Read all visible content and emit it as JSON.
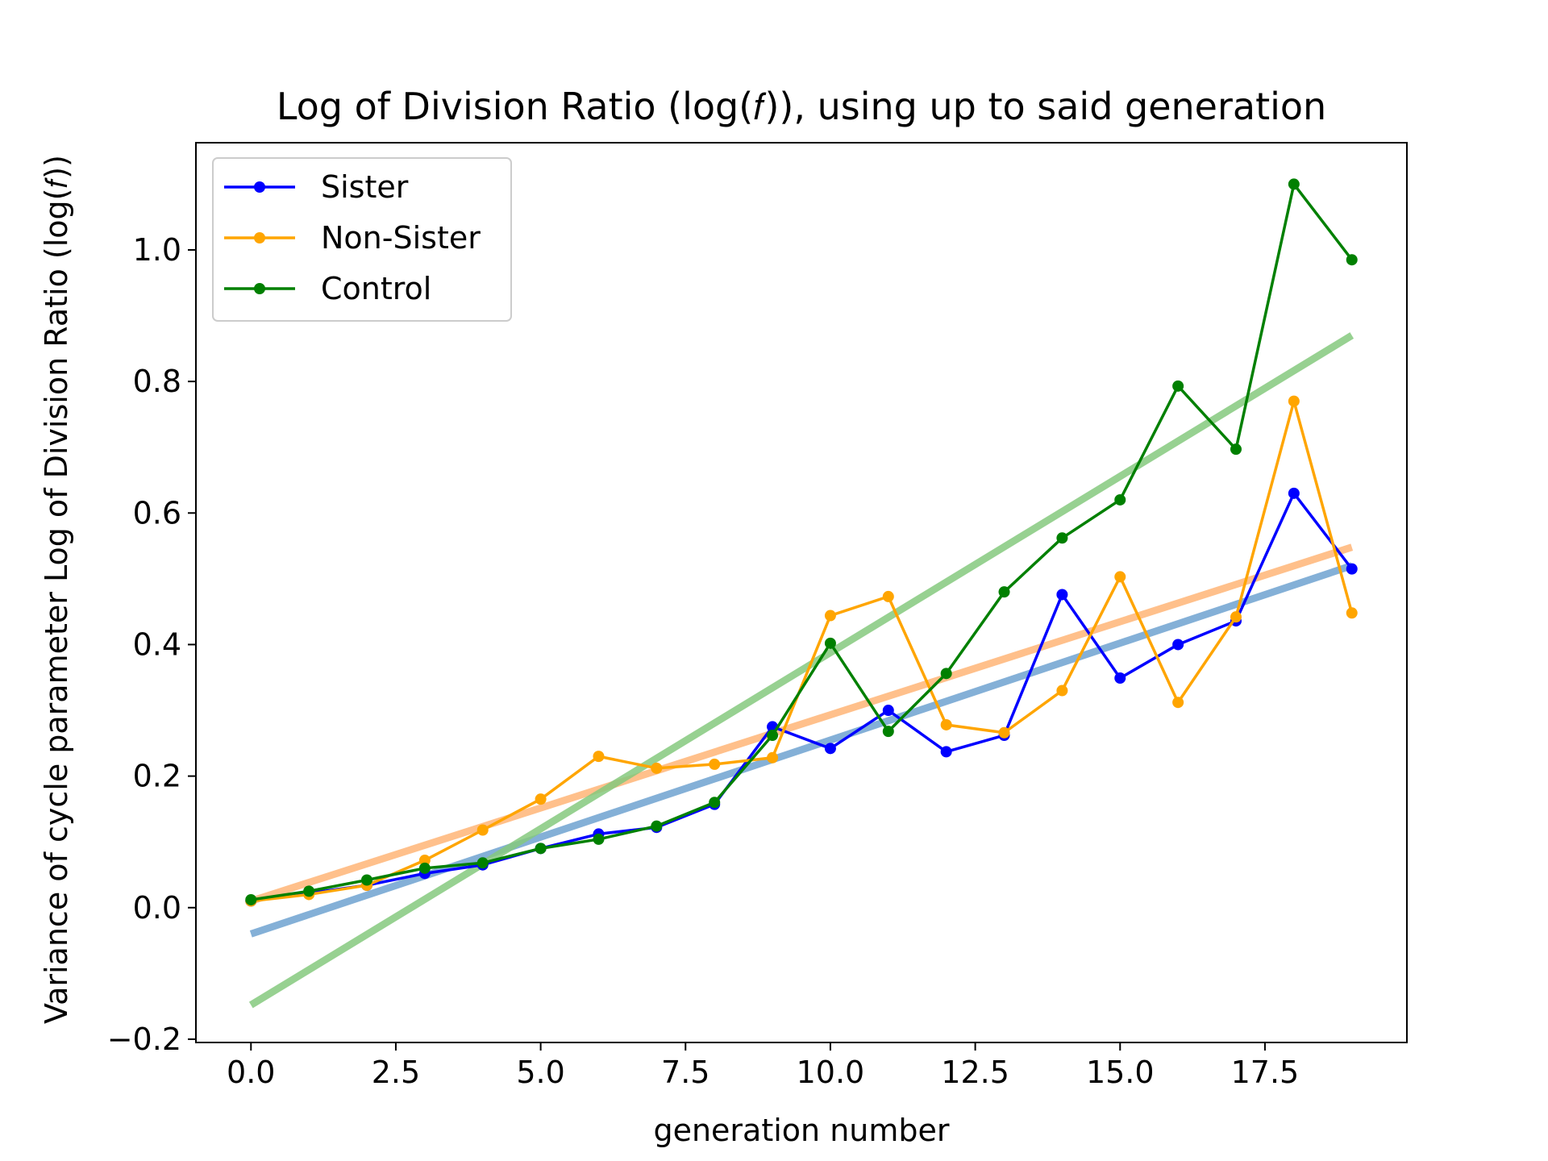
{
  "chart_data": {
    "type": "line",
    "title": "Log of Division Ratio (log(𝑓)), using up to said generation",
    "xlabel": "generation number",
    "ylabel": "Variance of cycle parameter Log of Division Ratio (log(𝑓))",
    "xlim": [
      -0.95,
      19.95
    ],
    "ylim": [
      -0.205,
      1.163
    ],
    "xticks": [
      0.0,
      2.5,
      5.0,
      7.5,
      10.0,
      12.5,
      15.0,
      17.5
    ],
    "xtick_labels": [
      "0.0",
      "2.5",
      "5.0",
      "7.5",
      "10.0",
      "12.5",
      "15.0",
      "17.5"
    ],
    "yticks": [
      -0.2,
      0.0,
      0.2,
      0.4,
      0.6,
      0.8,
      1.0
    ],
    "ytick_labels": [
      "−0.2",
      "0.0",
      "0.2",
      "0.4",
      "0.6",
      "0.8",
      "1.0"
    ],
    "legend_position": "top-left",
    "x": [
      0,
      1,
      2,
      3,
      4,
      5,
      6,
      7,
      8,
      9,
      10,
      11,
      12,
      13,
      14,
      15,
      16,
      17,
      18,
      19
    ],
    "series": [
      {
        "name": "Sister",
        "color": "#0000ff",
        "values": [
          0.01,
          0.022,
          0.034,
          0.052,
          0.065,
          0.09,
          0.112,
          0.122,
          0.157,
          0.275,
          0.242,
          0.3,
          0.237,
          0.262,
          0.476,
          0.349,
          0.4,
          0.436,
          0.63,
          0.515
        ]
      },
      {
        "name": "Non-Sister",
        "color": "#ffa500",
        "values": [
          0.01,
          0.02,
          0.034,
          0.072,
          0.118,
          0.165,
          0.23,
          0.212,
          0.218,
          0.228,
          0.444,
          0.473,
          0.278,
          0.266,
          0.33,
          0.503,
          0.312,
          0.442,
          0.77,
          0.448
        ]
      },
      {
        "name": "Control",
        "color": "#008000",
        "values": [
          0.012,
          0.025,
          0.042,
          0.06,
          0.068,
          0.09,
          0.104,
          0.124,
          0.16,
          0.262,
          0.402,
          0.268,
          0.356,
          0.48,
          0.562,
          0.62,
          0.793,
          0.697,
          1.1,
          0.985
        ]
      }
    ],
    "trend_lines": [
      {
        "of": "Sister",
        "color": "#6fa3d1",
        "x": [
          0,
          19
        ],
        "y": [
          -0.04,
          0.52
        ]
      },
      {
        "of": "Non-Sister",
        "color": "#ffb677",
        "x": [
          0,
          19
        ],
        "y": [
          0.01,
          0.548
        ]
      },
      {
        "of": "Control",
        "color": "#86c97e",
        "x": [
          0,
          19
        ],
        "y": [
          -0.148,
          0.87
        ]
      }
    ]
  }
}
